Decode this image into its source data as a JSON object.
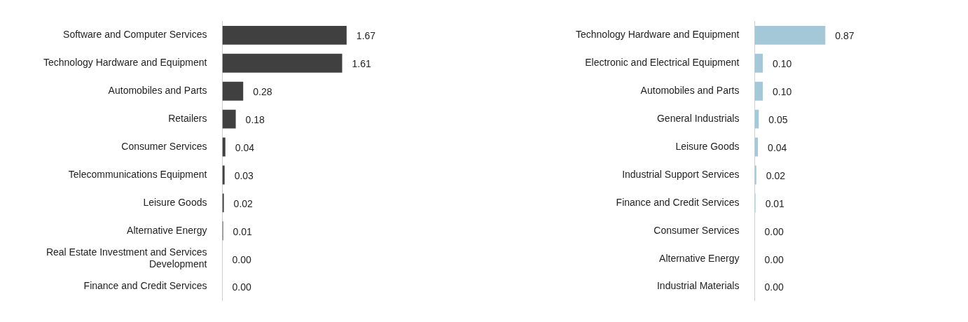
{
  "chart_data": [
    {
      "type": "bar",
      "orientation": "horizontal",
      "categories": [
        "Software and Computer Services",
        "Technology Hardware and Equipment",
        "Automobiles and Parts",
        "Retailers",
        "Consumer Services",
        "Telecommunications Equipment",
        "Leisure Goods",
        "Alternative Energy",
        "Real Estate Investment and Services Development",
        "Finance and Credit Services"
      ],
      "series": [
        {
          "color": "#404040",
          "values": [
            1.67,
            1.61,
            0.28,
            0.18,
            0.04,
            0.03,
            0.02,
            0.01,
            0.0,
            0.0
          ],
          "value_labels": [
            "1.67",
            "1.61",
            "0.28",
            "0.18",
            "0.04",
            "0.03",
            "0.02",
            "0.01",
            "0.00",
            "0.00"
          ]
        }
      ]
    },
    {
      "type": "bar",
      "orientation": "horizontal",
      "categories": [
        "Technology Hardware and Equipment",
        "Electronic and Electrical Equipment",
        "Automobiles and Parts",
        "General Industrials",
        "Leisure Goods",
        "Industrial Support Services",
        "Finance and Credit Services",
        "Consumer Services",
        "Alternative Energy",
        "Industrial Materials"
      ],
      "series": [
        {
          "color": "#a5c8d9",
          "values": [
            0.87,
            0.1,
            0.1,
            0.05,
            0.04,
            0.02,
            0.01,
            0.0,
            0.0,
            0.0
          ],
          "value_labels": [
            "0.87",
            "0.10",
            "0.10",
            "0.05",
            "0.04",
            "0.02",
            "0.01",
            "0.00",
            "0.00",
            "0.00"
          ]
        }
      ]
    }
  ]
}
